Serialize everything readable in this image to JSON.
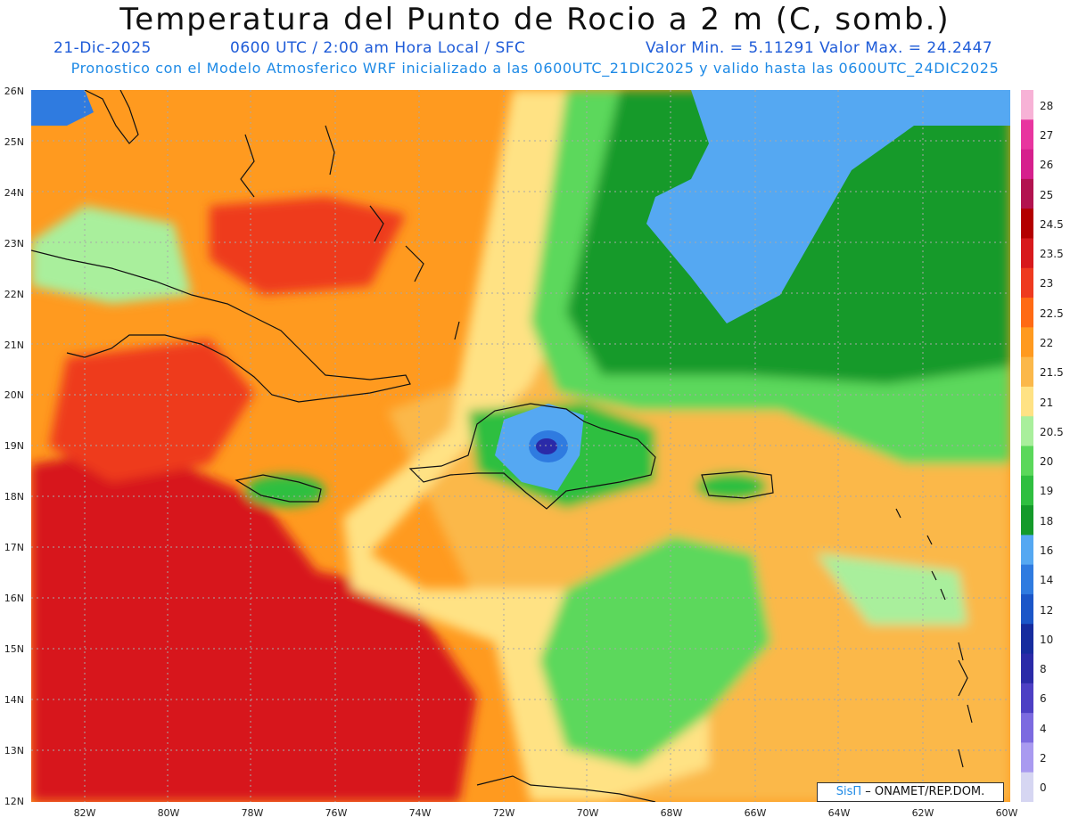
{
  "title": "Temperatura del Punto de Rocio a 2 m (C, somb.)",
  "date": "21-Dic-2025",
  "time_info": "0600 UTC / 2:00 am Hora Local / SFC",
  "min_max": "Valor Min. = 5.11291  Valor Max. = 24.2447",
  "model_line": "Pronostico con el Modelo Atmosferico WRF inicializado a las 0600UTC_21DIC2025 y valido hasta las  0600UTC_24DIC2025",
  "lat_labels": [
    "26N",
    "25N",
    "24N",
    "23N",
    "22N",
    "21N",
    "20N",
    "19N",
    "18N",
    "17N",
    "16N",
    "15N",
    "14N",
    "13N",
    "12N"
  ],
  "lon_labels": [
    "82W",
    "80W",
    "78W",
    "76W",
    "74W",
    "72W",
    "70W",
    "68W",
    "66W",
    "64W",
    "62W",
    "60W"
  ],
  "colorbar": {
    "labels": [
      "28",
      "27",
      "26",
      "25",
      "24.5",
      "23.5",
      "23",
      "22.5",
      "22",
      "21.5",
      "21",
      "20.5",
      "20",
      "19",
      "18",
      "16",
      "14",
      "12",
      "10",
      "8",
      "6",
      "4",
      "2",
      "0"
    ],
    "colors": [
      "#f7b2d6",
      "#e8359f",
      "#d6208d",
      "#b2124f",
      "#b30000",
      "#d7191c",
      "#ee3a1f",
      "#ff6a14",
      "#ff9a1f",
      "#fbb84a",
      "#ffe284",
      "#a9ef9c",
      "#5bd85b",
      "#2fbf40",
      "#149a2a",
      "#55a8f2",
      "#2f7be0",
      "#1b56c8",
      "#162c9e",
      "#2a2aa8",
      "#4d3fc4",
      "#7c6ae0",
      "#a99af0",
      "#d6d6f2"
    ]
  },
  "credit": {
    "brand": "SisΠ",
    "text": " – ONAMET/REP.DOM."
  },
  "icons": {
    "logo": "sispi-logo"
  }
}
